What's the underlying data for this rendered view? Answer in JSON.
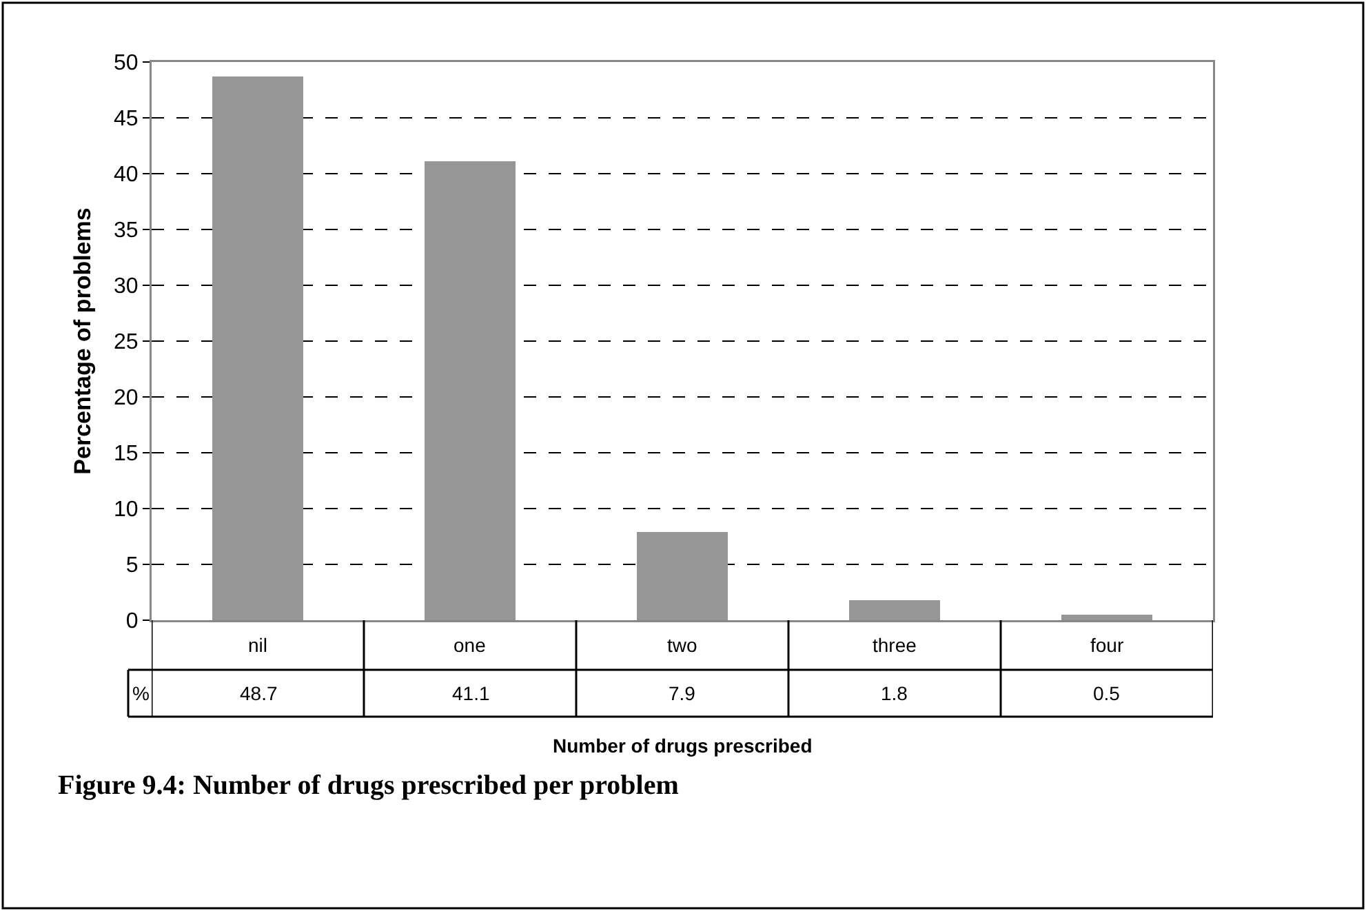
{
  "chart_data": {
    "type": "bar",
    "xlabel": "Number of drugs prescribed",
    "ylabel": "Percentage of problems",
    "categories": [
      "nil",
      "one",
      "two",
      "three",
      "four"
    ],
    "values": [
      48.7,
      41.1,
      7.9,
      1.8,
      0.5
    ],
    "color": "#969696",
    "ylim": [
      0,
      50
    ],
    "yticks": [
      0,
      5,
      10,
      15,
      20,
      25,
      30,
      35,
      40,
      45,
      50
    ],
    "grid": "y",
    "data_labels": true,
    "annotations": [
      "%",
      "Figure 9.4: Number of drugs prescribed per problem"
    ]
  }
}
